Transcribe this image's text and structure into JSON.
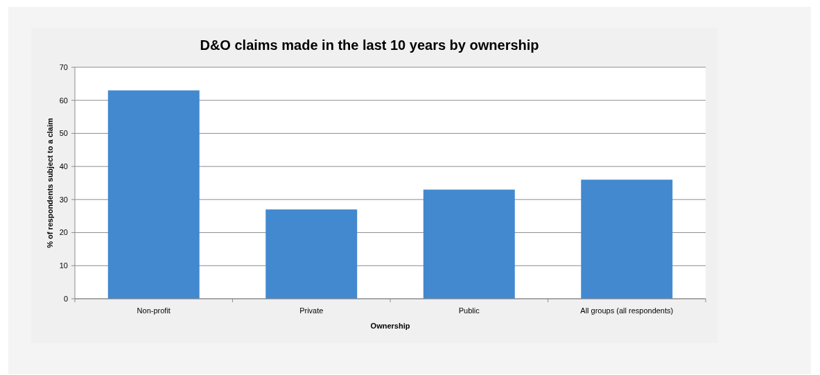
{
  "chart_data": {
    "type": "bar",
    "title": "D&O claims made in the last 10 years by ownership",
    "xlabel": "Ownership",
    "ylabel": "% of respondents subject to a claim",
    "categories": [
      "Non-profit",
      "Private",
      "Public",
      "All groups (all respondents)"
    ],
    "values": [
      63,
      27,
      33,
      36
    ],
    "color": "#4289cf",
    "ylim": [
      0,
      70
    ],
    "yticks": [
      0,
      10,
      20,
      30,
      40,
      50,
      60,
      70
    ],
    "grid": "y"
  }
}
